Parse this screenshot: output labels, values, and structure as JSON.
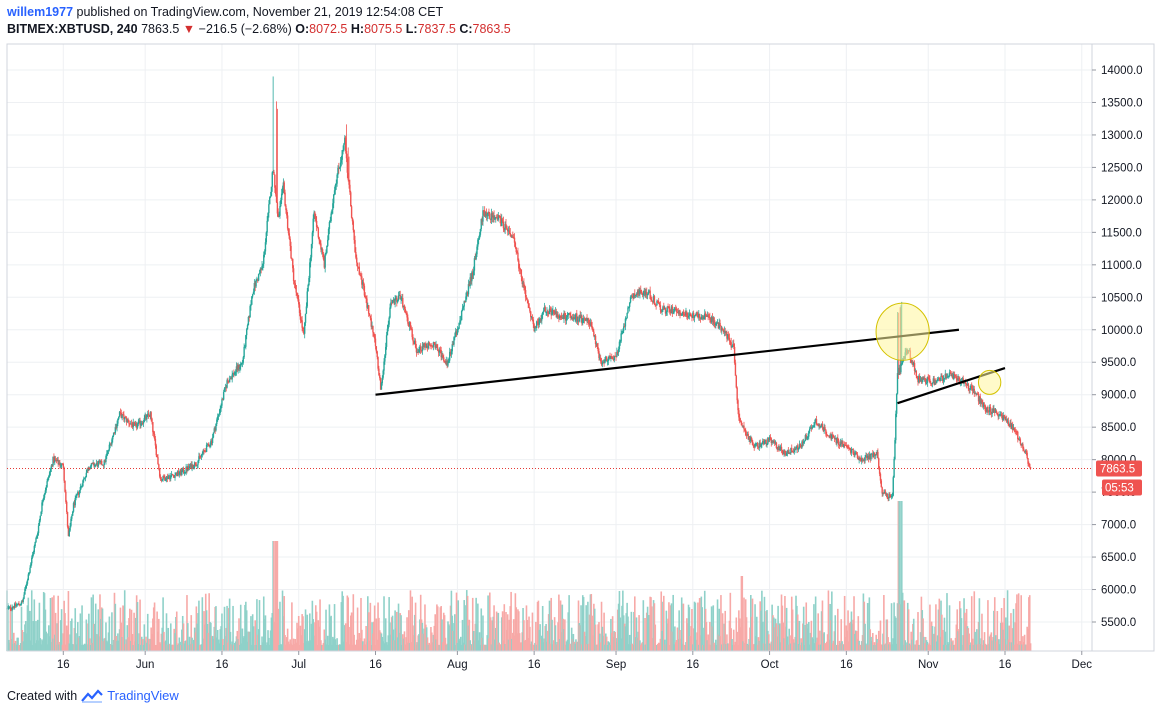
{
  "header": {
    "user": "willem1977",
    "published": "published on TradingView.com, November 21, 2019 12:54:08 CET",
    "symbol": "BITMEX:XBTUSD, 240",
    "last": "7863.5",
    "change": "−216.5 (−2.68%)",
    "o_label": "O:",
    "o": "8072.5",
    "h_label": "H:",
    "h": "8075.5",
    "l_label": "L:",
    "l": "7837.5",
    "c_label": "C:",
    "c": "7863.5"
  },
  "footer": {
    "created_with": "Created with",
    "brand": "TradingView"
  },
  "price_tag": {
    "last": "7863.5",
    "countdown": "05:53"
  },
  "colors": {
    "up": "#26a69a",
    "down": "#ef5350",
    "up_vol": "#8fd1c9",
    "down_vol": "#f7a9a7",
    "last_line": "#e53935",
    "grid": "#eef0f3",
    "trendline": "#000000",
    "highlight_fill": "#fff59d",
    "highlight_stroke": "#d4c200"
  },
  "chart_data": {
    "type": "candlestick",
    "symbol": "BITMEX:XBTUSD",
    "interval": "240",
    "y_ticks": [
      5500,
      6000,
      6500,
      7000,
      7500,
      8000,
      8500,
      9000,
      9500,
      10000,
      10500,
      11000,
      11500,
      12000,
      12500,
      13000,
      13500,
      14000
    ],
    "y_tick_labels": [
      "5500.0",
      "6000.0",
      "6500.0",
      "7000.0",
      "7500.0",
      "8000.0",
      "8500.0",
      "9000.0",
      "9500.0",
      "10000.0",
      "10500.0",
      "11000.0",
      "11500.0",
      "12000.0",
      "12500.0",
      "13000.0",
      "13500.0",
      "14000.0"
    ],
    "ylim": [
      5000,
      14600
    ],
    "x_range": [
      "2019-05-05",
      "2019-12-03"
    ],
    "x_ticks": [
      {
        "label": "16",
        "date": "2019-05-16"
      },
      {
        "label": "Jun",
        "date": "2019-06-01"
      },
      {
        "label": "16",
        "date": "2019-06-16"
      },
      {
        "label": "Jul",
        "date": "2019-07-01"
      },
      {
        "label": "16",
        "date": "2019-07-16"
      },
      {
        "label": "Aug",
        "date": "2019-08-01"
      },
      {
        "label": "16",
        "date": "2019-08-16"
      },
      {
        "label": "Sep",
        "date": "2019-09-01"
      },
      {
        "label": "16",
        "date": "2019-09-16"
      },
      {
        "label": "Oct",
        "date": "2019-10-01"
      },
      {
        "label": "16",
        "date": "2019-10-16"
      },
      {
        "label": "Nov",
        "date": "2019-11-01"
      },
      {
        "label": "16",
        "date": "2019-11-16"
      },
      {
        "label": "Dec",
        "date": "2019-12-01"
      }
    ],
    "price_path": [
      [
        "2019-05-05",
        5700
      ],
      [
        "2019-05-08",
        5800
      ],
      [
        "2019-05-11",
        6900
      ],
      [
        "2019-05-12",
        7400
      ],
      [
        "2019-05-14",
        8000
      ],
      [
        "2019-05-16",
        7900
      ],
      [
        "2019-05-17",
        6800
      ],
      [
        "2019-05-18",
        7300
      ],
      [
        "2019-05-21",
        7900
      ],
      [
        "2019-05-24",
        7950
      ],
      [
        "2019-05-27",
        8700
      ],
      [
        "2019-05-30",
        8500
      ],
      [
        "2019-06-02",
        8700
      ],
      [
        "2019-06-04",
        7700
      ],
      [
        "2019-06-08",
        7800
      ],
      [
        "2019-06-11",
        7950
      ],
      [
        "2019-06-14",
        8300
      ],
      [
        "2019-06-17",
        9200
      ],
      [
        "2019-06-20",
        9500
      ],
      [
        "2019-06-22",
        10600
      ],
      [
        "2019-06-24",
        11000
      ],
      [
        "2019-06-26",
        12500
      ],
      [
        "2019-06-27",
        11700
      ],
      [
        "2019-06-28",
        12200
      ],
      [
        "2019-06-30",
        10800
      ],
      [
        "2019-07-02",
        9900
      ],
      [
        "2019-07-04",
        11800
      ],
      [
        "2019-07-06",
        11000
      ],
      [
        "2019-07-08",
        12200
      ],
      [
        "2019-07-10",
        12900
      ],
      [
        "2019-07-12",
        11200
      ],
      [
        "2019-07-14",
        10500
      ],
      [
        "2019-07-16",
        9800
      ],
      [
        "2019-07-17",
        9100
      ],
      [
        "2019-07-19",
        10400
      ],
      [
        "2019-07-21",
        10500
      ],
      [
        "2019-07-24",
        9700
      ],
      [
        "2019-07-27",
        9800
      ],
      [
        "2019-07-30",
        9500
      ],
      [
        "2019-08-01",
        10000
      ],
      [
        "2019-08-04",
        10900
      ],
      [
        "2019-08-06",
        11800
      ],
      [
        "2019-08-09",
        11700
      ],
      [
        "2019-08-12",
        11400
      ],
      [
        "2019-08-14",
        10600
      ],
      [
        "2019-08-16",
        10000
      ],
      [
        "2019-08-18",
        10300
      ],
      [
        "2019-08-21",
        10200
      ],
      [
        "2019-08-24",
        10200
      ],
      [
        "2019-08-27",
        10100
      ],
      [
        "2019-08-29",
        9500
      ],
      [
        "2019-09-01",
        9600
      ],
      [
        "2019-09-04",
        10500
      ],
      [
        "2019-09-07",
        10600
      ],
      [
        "2019-09-10",
        10300
      ],
      [
        "2019-09-13",
        10300
      ],
      [
        "2019-09-16",
        10200
      ],
      [
        "2019-09-19",
        10200
      ],
      [
        "2019-09-22",
        10000
      ],
      [
        "2019-09-24",
        9700
      ],
      [
        "2019-09-25",
        8600
      ],
      [
        "2019-09-28",
        8200
      ],
      [
        "2019-10-01",
        8300
      ],
      [
        "2019-10-04",
        8100
      ],
      [
        "2019-10-07",
        8200
      ],
      [
        "2019-10-10",
        8600
      ],
      [
        "2019-10-13",
        8350
      ],
      [
        "2019-10-16",
        8200
      ],
      [
        "2019-10-19",
        8000
      ],
      [
        "2019-10-22",
        8100
      ],
      [
        "2019-10-23",
        7500
      ],
      [
        "2019-10-25",
        7400
      ],
      [
        "2019-10-26",
        9300
      ],
      [
        "2019-10-27",
        9500
      ],
      [
        "2019-10-28",
        9700
      ],
      [
        "2019-10-30",
        9250
      ],
      [
        "2019-11-02",
        9200
      ],
      [
        "2019-11-05",
        9300
      ],
      [
        "2019-11-08",
        9200
      ],
      [
        "2019-11-10",
        9050
      ],
      [
        "2019-11-12",
        8800
      ],
      [
        "2019-11-15",
        8700
      ],
      [
        "2019-11-18",
        8450
      ],
      [
        "2019-11-20",
        8100
      ],
      [
        "2019-11-21",
        7863.5
      ]
    ],
    "last_price": 7863.5,
    "annotations": {
      "trendlines": [
        {
          "from": [
            "2019-07-16",
            9000
          ],
          "to": [
            "2019-11-07",
            10000
          ]
        },
        {
          "from": [
            "2019-10-26",
            8870
          ],
          "to": [
            "2019-11-16",
            9410
          ]
        }
      ],
      "highlight_circles": [
        {
          "center": [
            "2019-10-27",
            9970
          ],
          "radius_price": 440
        },
        {
          "center": [
            "2019-11-13",
            9190
          ],
          "radius_price": 185
        }
      ]
    }
  }
}
